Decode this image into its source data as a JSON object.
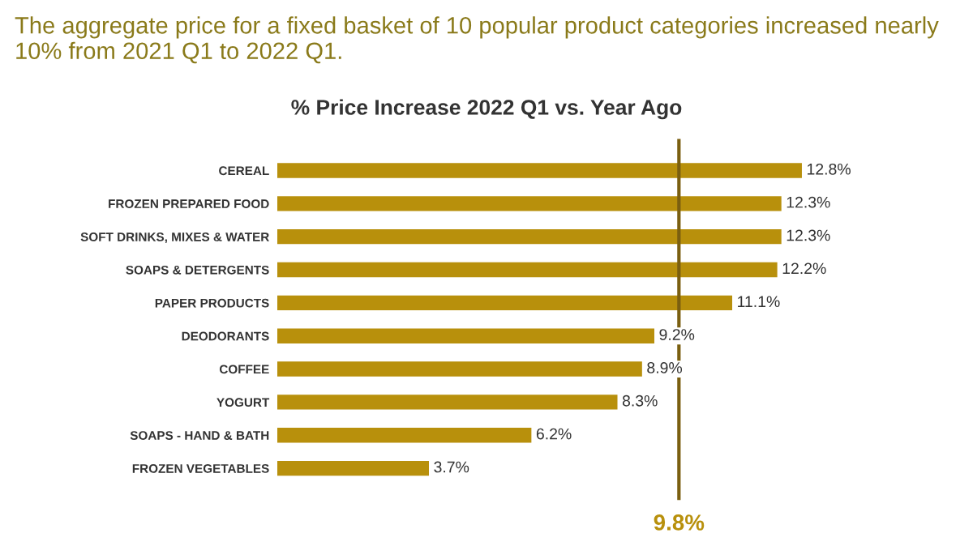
{
  "chart_data": {
    "type": "bar",
    "orientation": "horizontal",
    "title": "The aggregate price for a fixed basket of 10 popular product categories increased nearly 10% from 2021 Q1 to 2022 Q1.",
    "subtitle": "% Price Increase 2022 Q1 vs. Year Ago",
    "categories": [
      "CEREAL",
      "FROZEN PREPARED FOOD",
      "SOFT DRINKS, MIXES & WATER",
      "SOAPS & DETERGENTS",
      "PAPER PRODUCTS",
      "DEODORANTS",
      "COFFEE",
      "YOGURT",
      "SOAPS - HAND & BATH",
      "FROZEN VEGETABLES"
    ],
    "values": [
      12.8,
      12.3,
      12.3,
      12.2,
      11.1,
      9.2,
      8.9,
      8.3,
      6.2,
      3.7
    ],
    "value_labels": [
      "12.8%",
      "12.3%",
      "12.3%",
      "12.2%",
      "11.1%",
      "9.2%",
      "8.9%",
      "8.3%",
      "6.2%",
      "3.7%"
    ],
    "color": "#b8900c",
    "ref_lines": [
      {
        "axis": "x",
        "value": 9.8,
        "label": "9.8%",
        "color": "#7a5f10"
      }
    ],
    "grid": false,
    "legend": false
  }
}
